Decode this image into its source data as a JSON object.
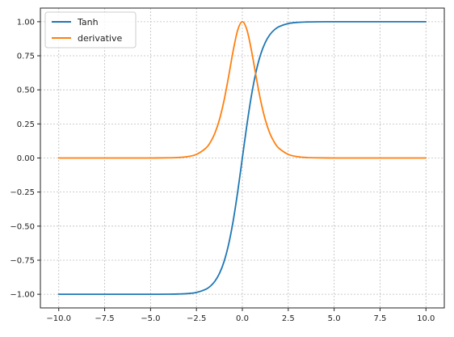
{
  "chart_data": {
    "type": "line",
    "title": "",
    "xlabel": "",
    "ylabel": "",
    "xlim": [
      -11.0,
      11.0
    ],
    "ylim": [
      -1.1,
      1.1
    ],
    "x_ticks": [
      -10.0,
      -7.5,
      -5.0,
      -2.5,
      0.0,
      2.5,
      5.0,
      7.5,
      10.0
    ],
    "x_tick_labels": [
      "−10.0",
      "−7.5",
      "−5.0",
      "−2.5",
      "0.0",
      "2.5",
      "5.0",
      "7.5",
      "10.0"
    ],
    "y_ticks": [
      1.0,
      0.75,
      0.5,
      0.25,
      0.0,
      -0.25,
      -0.5,
      -0.75,
      -1.0
    ],
    "y_tick_labels": [
      "1.00",
      "0.75",
      "0.50",
      "0.25",
      "0.00",
      "−0.25",
      "−0.50",
      "−0.75",
      "−1.00"
    ],
    "grid": true,
    "legend_position": "upper-left",
    "x": [
      -10.0,
      -8.0,
      -6.0,
      -5.0,
      -4.0,
      -3.5,
      -3.0,
      -2.5,
      -2.0,
      -1.75,
      -1.5,
      -1.25,
      -1.0,
      -0.75,
      -0.5,
      -0.25,
      0.0,
      0.25,
      0.5,
      0.75,
      1.0,
      1.25,
      1.5,
      1.75,
      2.0,
      2.5,
      3.0,
      3.5,
      4.0,
      5.0,
      6.0,
      8.0,
      10.0
    ],
    "series": [
      {
        "name": "Tanh",
        "color": "#1f77b4",
        "values": [
          -1.0,
          -1.0,
          -1.0,
          -0.9999,
          -0.9993,
          -0.9982,
          -0.9951,
          -0.9866,
          -0.964,
          -0.9414,
          -0.9051,
          -0.8483,
          -0.7616,
          -0.6351,
          -0.4621,
          -0.2449,
          0.0,
          0.2449,
          0.4621,
          0.6351,
          0.7616,
          0.8483,
          0.9051,
          0.9414,
          0.964,
          0.9866,
          0.9951,
          0.9982,
          0.9993,
          0.9999,
          1.0,
          1.0,
          1.0
        ]
      },
      {
        "name": "derivative",
        "color": "#ff7f0e",
        "values": [
          0.0,
          0.0,
          0.0,
          0.0002,
          0.0013,
          0.0036,
          0.0099,
          0.0266,
          0.0707,
          0.1138,
          0.1807,
          0.2804,
          0.42,
          0.5966,
          0.7864,
          0.94,
          1.0,
          0.94,
          0.7864,
          0.5966,
          0.42,
          0.2804,
          0.1807,
          0.1138,
          0.0707,
          0.0266,
          0.0099,
          0.0036,
          0.0013,
          0.0002,
          0.0,
          0.0,
          0.0
        ]
      }
    ]
  }
}
